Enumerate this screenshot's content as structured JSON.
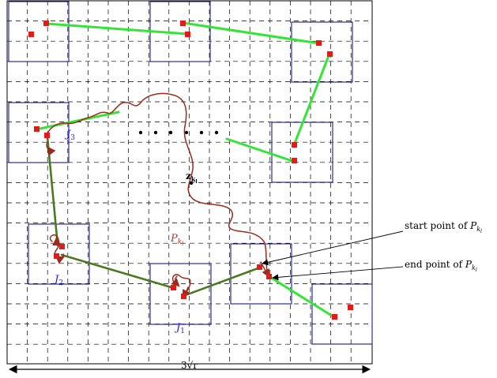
{
  "labels": {
    "j1": "J",
    "j1_sub": "1",
    "j2": "J",
    "j2_sub": "2",
    "j3": "J",
    "j3_sub": "3",
    "path": "P",
    "path_sub": "k",
    "path_subsub": "l",
    "point": "z",
    "point_sub": "k",
    "point_subsub": "l",
    "start": "start point of ",
    "start_var": "P",
    "start_sub": "k",
    "start_subsub": "l",
    "end": "end point of ",
    "end_var": "P",
    "end_sub": "k",
    "end_subsub": "l",
    "width": "3√r"
  },
  "colors": {
    "box": "#1a1a8a",
    "bright_segment": "#33e633",
    "olive_segment": "#4c7a1f",
    "path": "#9b2a1f",
    "endpoint": "#e61919",
    "label_blue": "#1a1aff",
    "label_path": "#b03a2e"
  }
}
